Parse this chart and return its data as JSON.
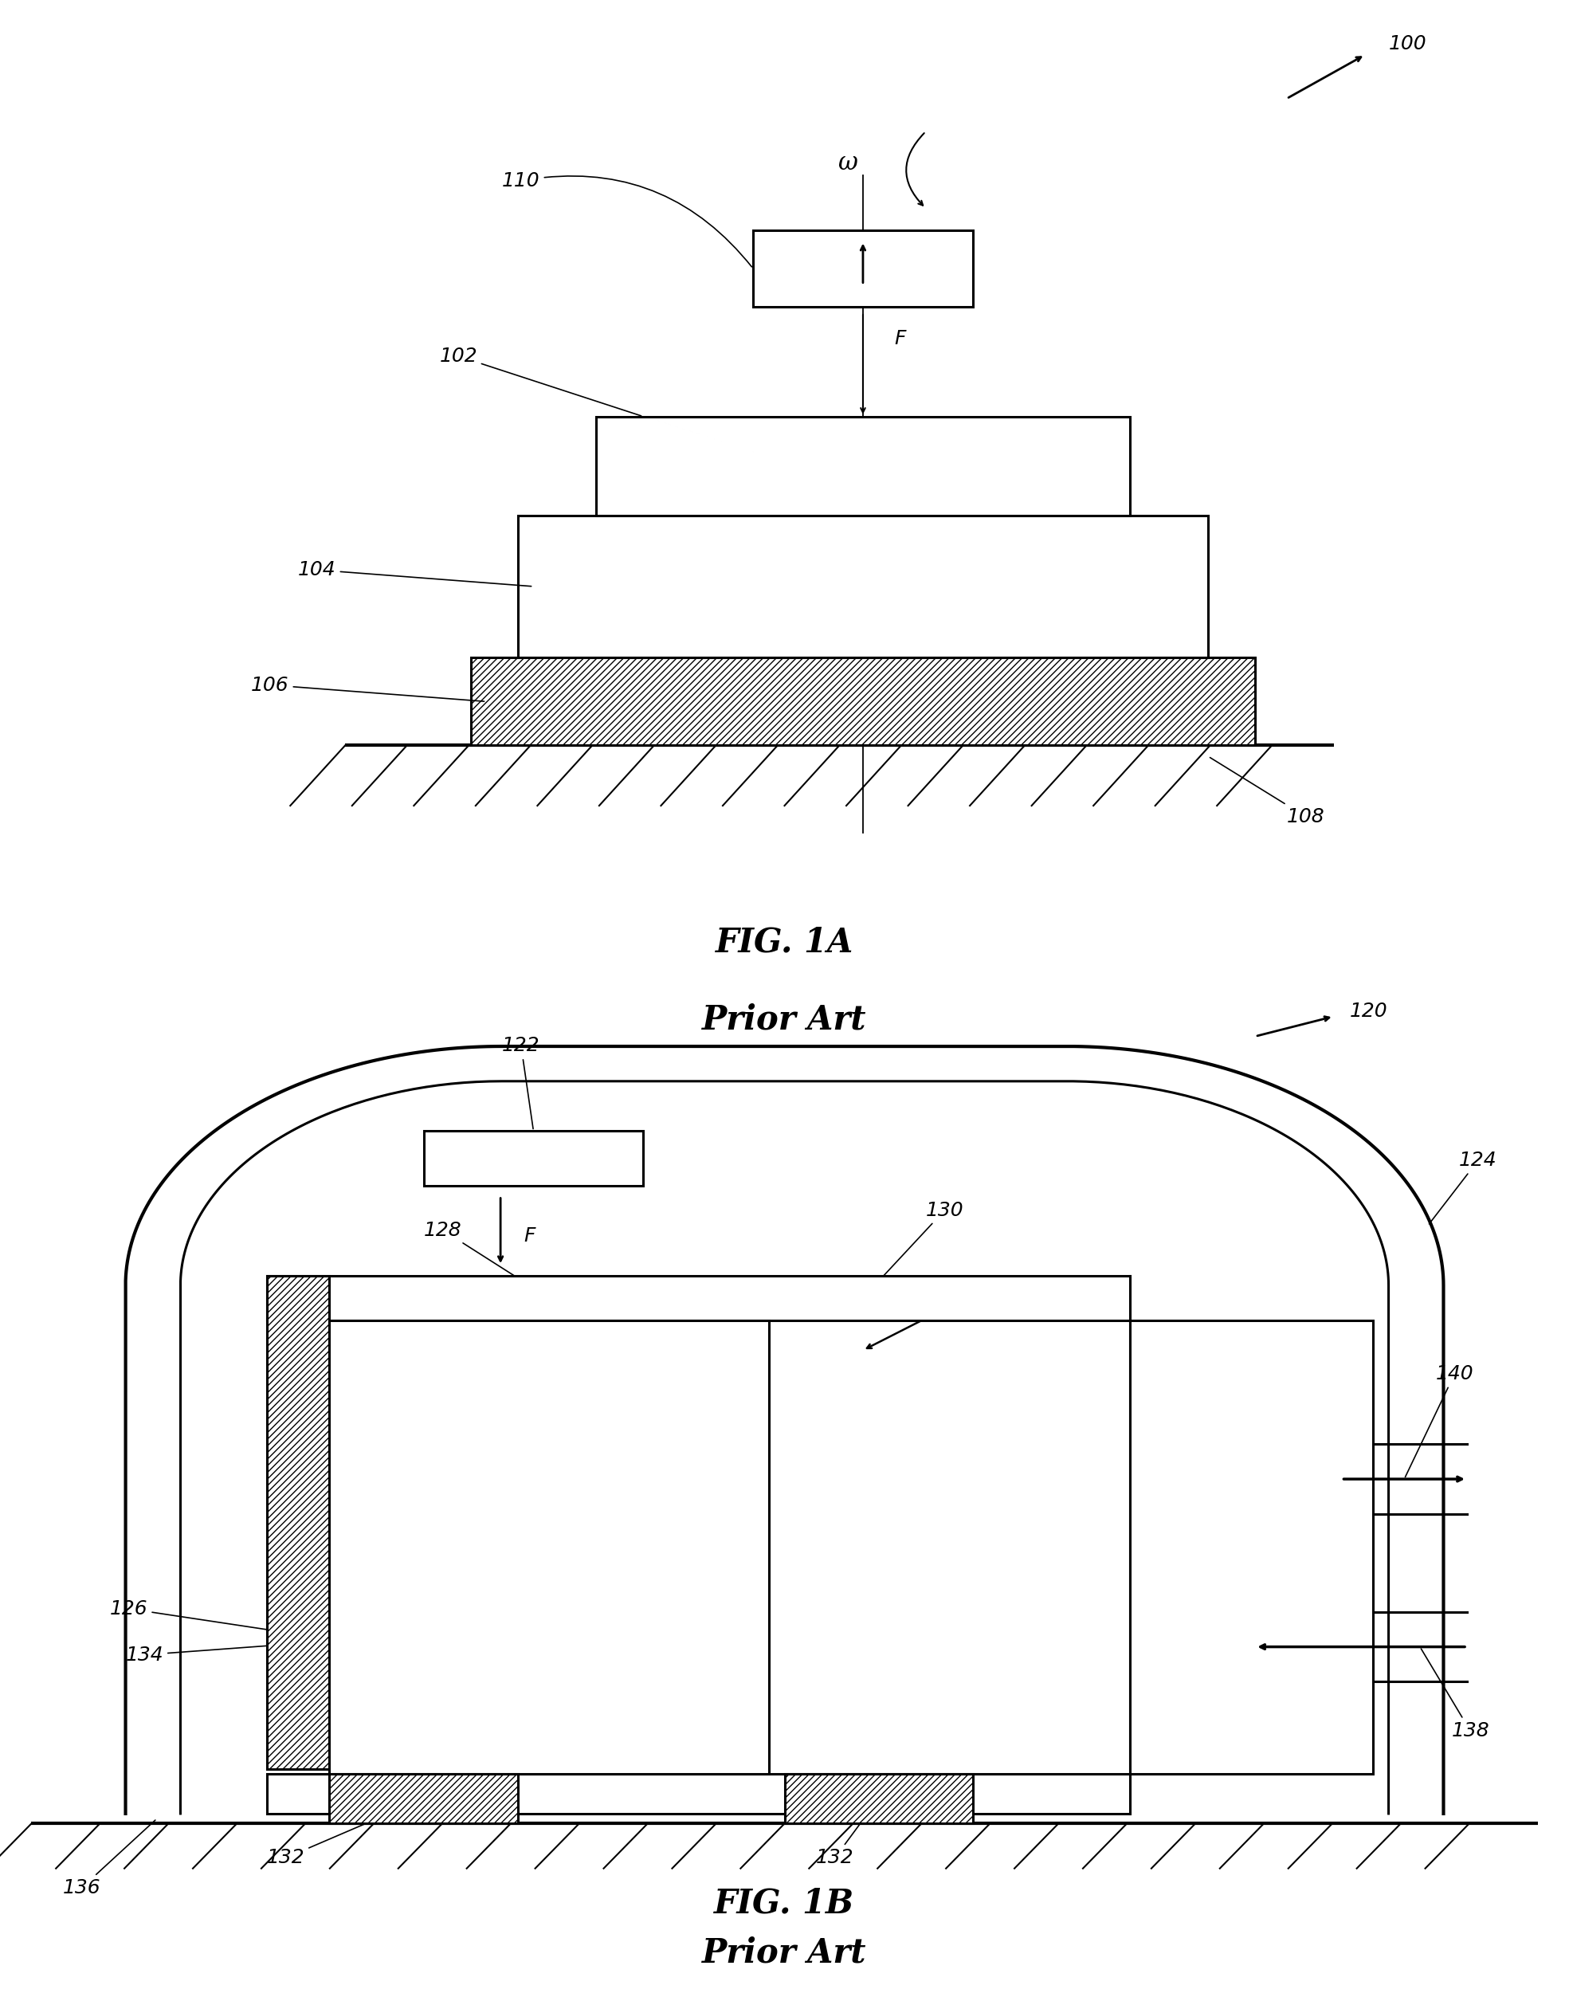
{
  "fig_width": 19.69,
  "fig_height": 25.01,
  "bg_color": "#ffffff",
  "lc": "#000000",
  "fig1a_caption": "FIG. 1A",
  "fig1a_sub": "Prior Art",
  "fig1b_caption": "FIG. 1B",
  "fig1b_sub": "Prior Art",
  "ref_fontsize": 18,
  "cap_fontsize": 30,
  "omega_fontsize": 20
}
